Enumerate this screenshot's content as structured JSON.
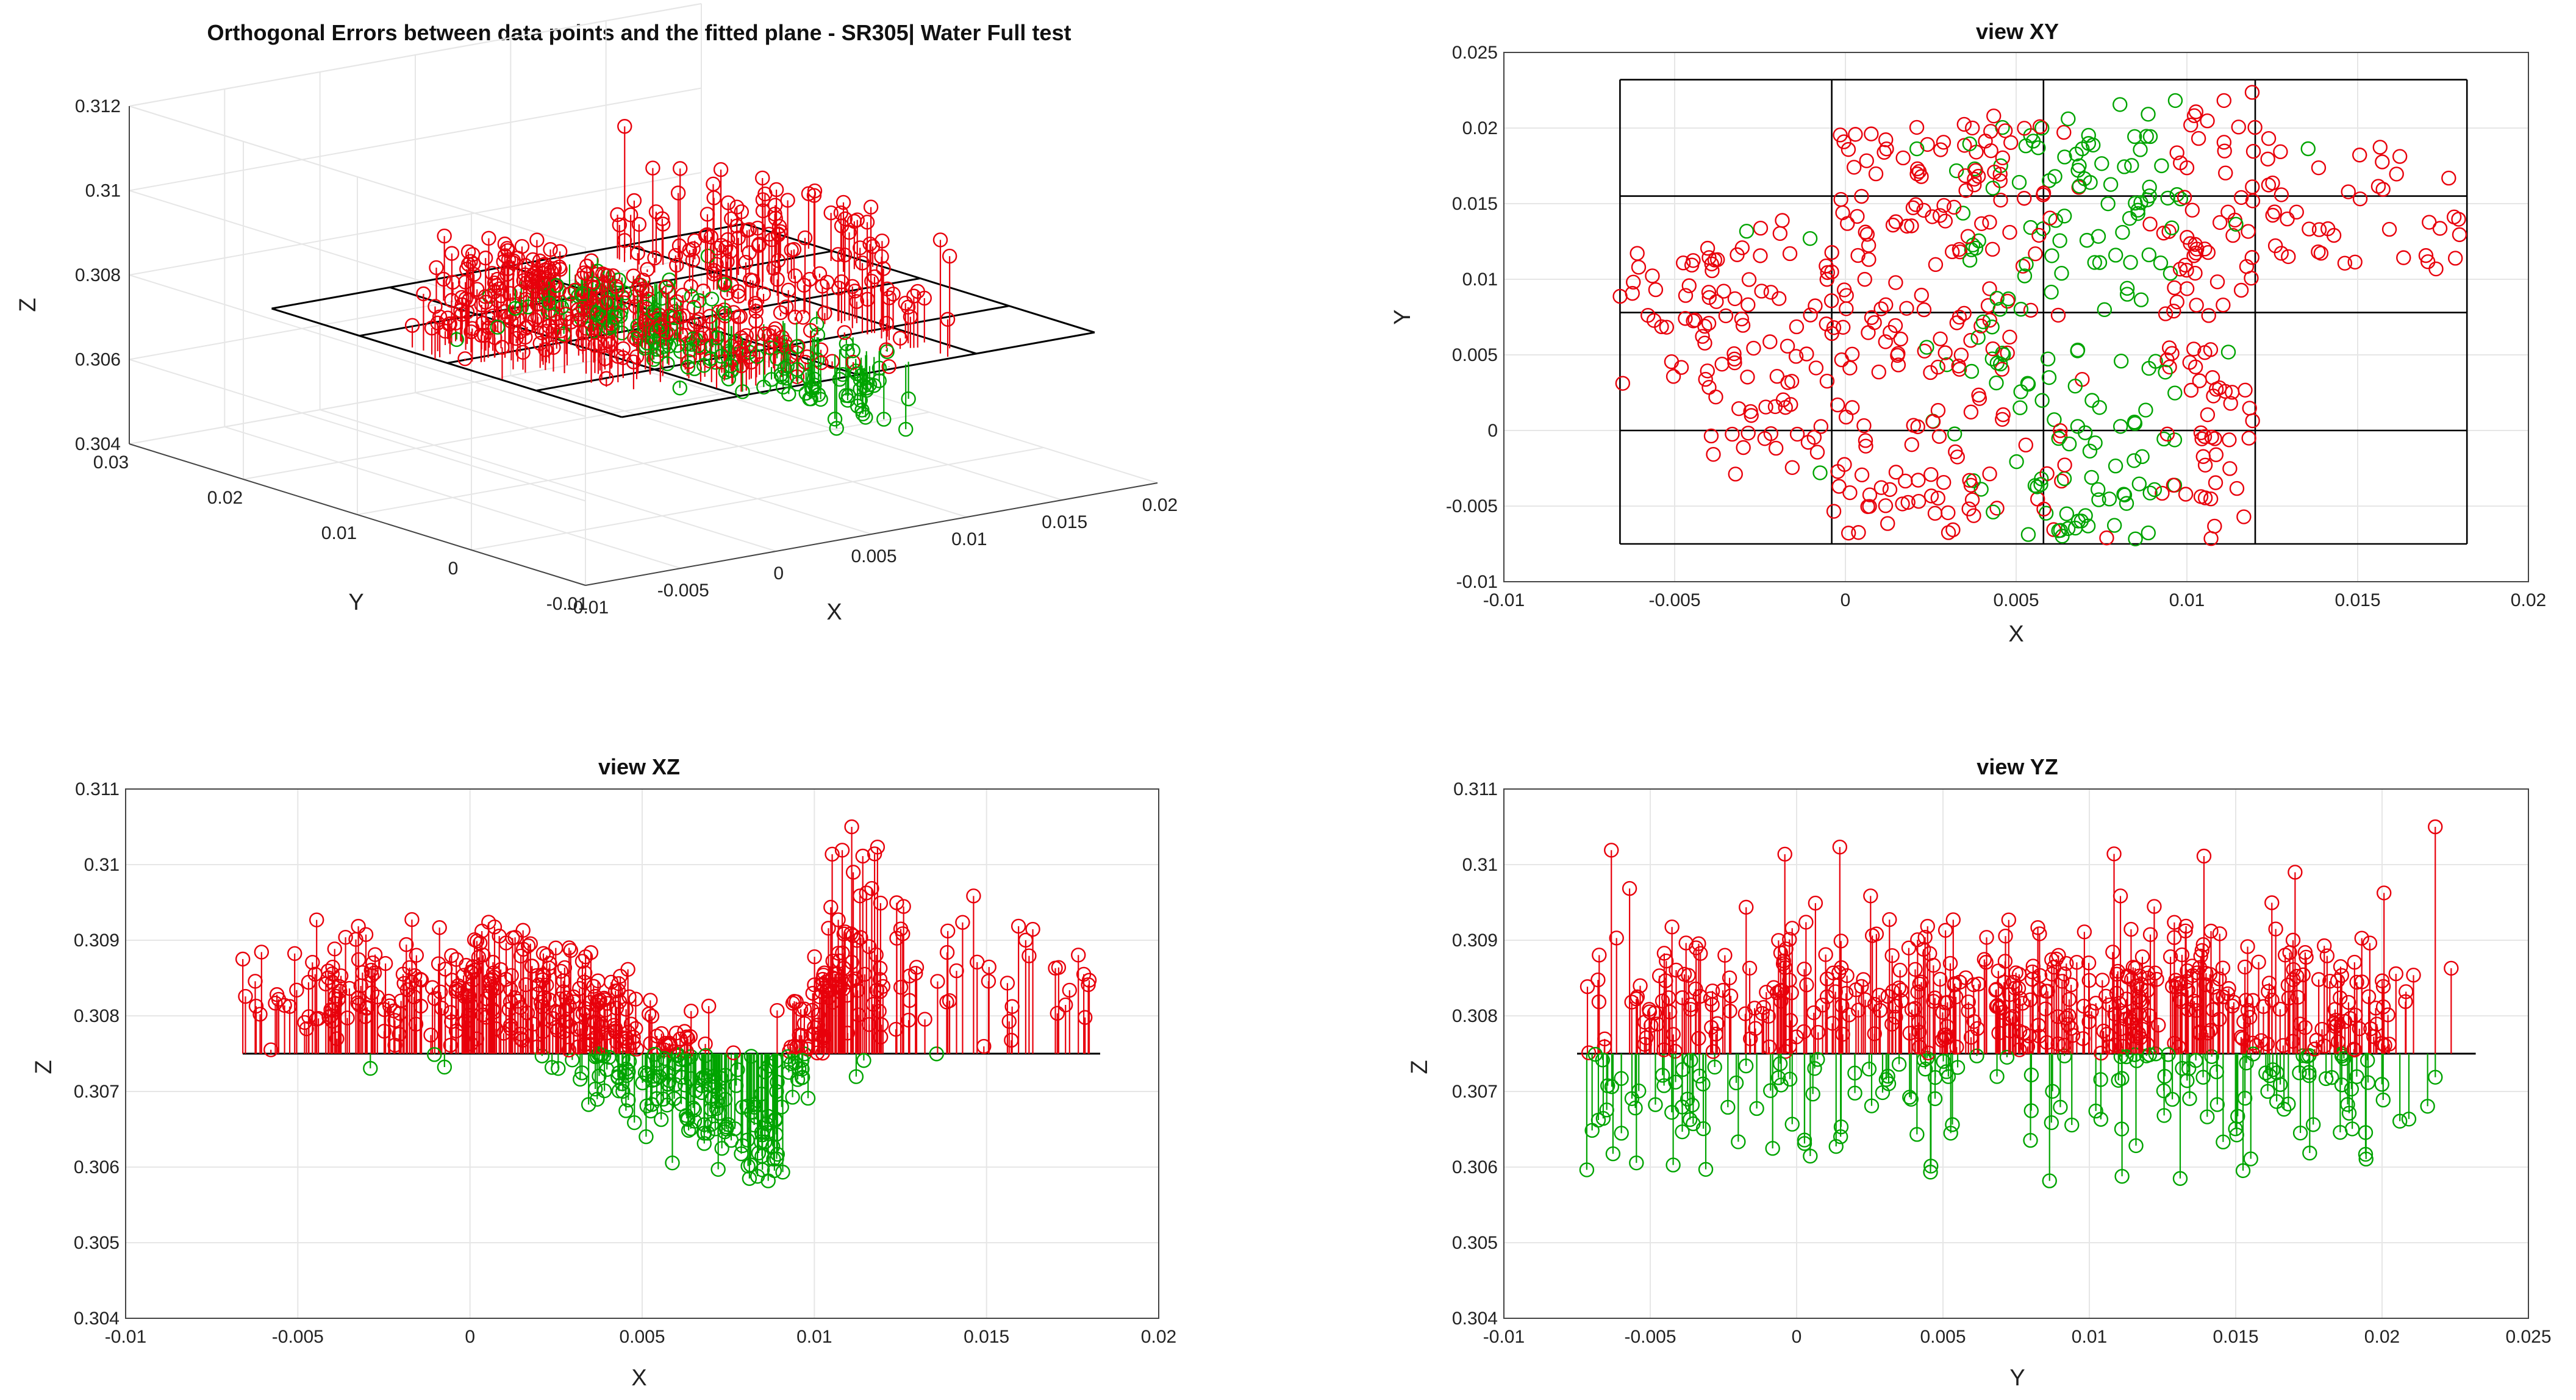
{
  "colors": {
    "positive": "#e8000b",
    "negative": "#00a400",
    "frame": "#000000"
  },
  "chart_data": [
    {
      "type": "scatter",
      "subtype": "3d-stem",
      "title": "Orthogonal Errors between data points and the fitted plane - SR305| Water Full test",
      "xlabel": "X",
      "ylabel": "Y",
      "zlabel": "Z",
      "xlim": [
        -0.01,
        0.02
      ],
      "ylim": [
        -0.01,
        0.03
      ],
      "zlim": [
        0.304,
        0.312
      ],
      "xticks": [
        "-0.01",
        "-0.005",
        "0",
        "0.005",
        "0.01",
        "0.015",
        "0.02"
      ],
      "yticks": [
        "-0.01",
        "0",
        "0.01",
        "0.02",
        "0.03"
      ],
      "zticks": [
        "0.304",
        "0.306",
        "0.308",
        "0.31",
        "0.312"
      ],
      "plane_z": 0.3075
    },
    {
      "type": "scatter",
      "title": "view XY",
      "xlabel": "X",
      "ylabel": "Y",
      "xlim": [
        -0.01,
        0.02
      ],
      "ylim": [
        -0.01,
        0.025
      ],
      "xticks": [
        "-0.01",
        "-0.005",
        "0",
        "0.005",
        "0.01",
        "0.015",
        "0.02"
      ],
      "yticks": [
        "-0.01",
        "-0.005",
        "0",
        "0.005",
        "0.01",
        "0.015",
        "0.02",
        "0.025"
      ],
      "plane_grid": {
        "x": [
          -0.0066,
          -0.0004,
          0.0058,
          0.012,
          0.0182
        ],
        "y": [
          -0.0075,
          0,
          0.0078,
          0.0155,
          0.0232
        ]
      }
    },
    {
      "type": "scatter",
      "subtype": "stem",
      "title": "view XZ",
      "xlabel": "X",
      "ylabel": "Z",
      "xlim": [
        -0.01,
        0.02
      ],
      "ylim": [
        0.304,
        0.311
      ],
      "xticks": [
        "-0.01",
        "-0.005",
        "0",
        "0.005",
        "0.01",
        "0.015",
        "0.02"
      ],
      "yticks": [
        "0.304",
        "0.305",
        "0.306",
        "0.307",
        "0.308",
        "0.309",
        "0.31",
        "0.311"
      ],
      "baseline": 0.3075,
      "baseline_range": [
        -0.0066,
        0.0183
      ]
    },
    {
      "type": "scatter",
      "subtype": "stem",
      "title": "view YZ",
      "xlabel": "Y",
      "ylabel": "Z",
      "xlim": [
        -0.01,
        0.025
      ],
      "ylim": [
        0.304,
        0.311
      ],
      "xticks": [
        "-0.01",
        "-0.005",
        "0",
        "0.005",
        "0.01",
        "0.015",
        "0.02",
        "0.025"
      ],
      "yticks": [
        "0.304",
        "0.305",
        "0.306",
        "0.307",
        "0.308",
        "0.309",
        "0.31",
        "0.311"
      ],
      "baseline": 0.3075,
      "baseline_range": [
        -0.0075,
        0.0232
      ]
    }
  ]
}
